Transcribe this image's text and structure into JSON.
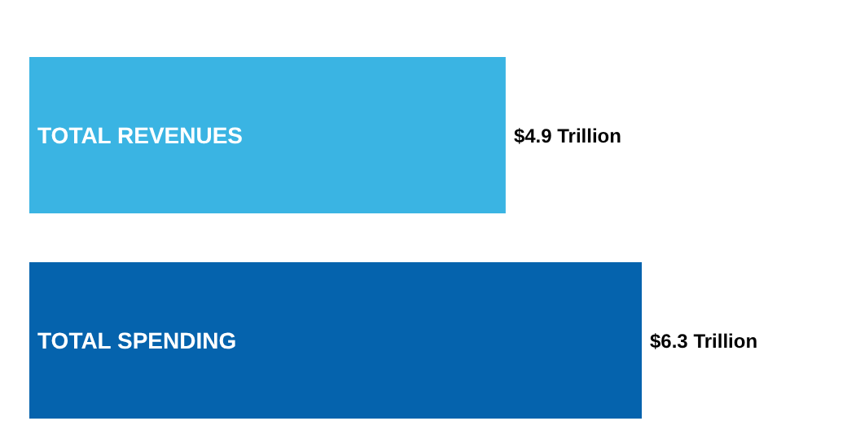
{
  "chart_data": {
    "type": "bar",
    "orientation": "horizontal",
    "categories": [
      "TOTAL REVENUES",
      "TOTAL SPENDING"
    ],
    "values": [
      4.9,
      6.3
    ],
    "colors": [
      "#3ab4e3",
      "#0563ad"
    ],
    "value_labels": [
      "$4.9 Trillion",
      "$6.3 Trillion"
    ]
  }
}
